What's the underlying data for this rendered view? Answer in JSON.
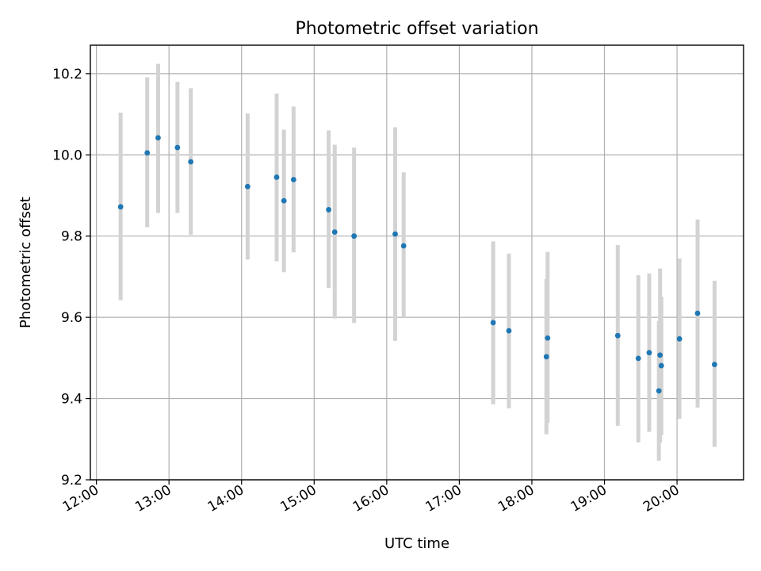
{
  "chart_data": {
    "type": "scatter",
    "title": "Photometric offset variation",
    "xlabel": "UTC time",
    "ylabel": "Photometric offset",
    "xlim": [
      "11:55",
      "20:55"
    ],
    "ylim": [
      9.2,
      10.27
    ],
    "x_ticks": [
      "12:00",
      "13:00",
      "14:00",
      "15:00",
      "16:00",
      "17:00",
      "18:00",
      "19:00",
      "20:00"
    ],
    "y_ticks": [
      "9.2",
      "9.4",
      "9.6",
      "9.8",
      "10.0",
      "10.2"
    ],
    "grid": true,
    "legend": "none",
    "colors": {
      "point": "#1f77b4",
      "errorbar": "#d3d3d3",
      "grid": "#b0b0b0"
    },
    "series": [
      {
        "points": [
          {
            "time": "12:20",
            "y": 9.872,
            "err_low": 9.642,
            "err_high": 10.104
          },
          {
            "time": "12:42",
            "y": 10.005,
            "err_low": 9.822,
            "err_high": 10.191
          },
          {
            "time": "12:51",
            "y": 10.042,
            "err_low": 9.857,
            "err_high": 10.224
          },
          {
            "time": "13:07",
            "y": 10.018,
            "err_low": 9.857,
            "err_high": 10.18
          },
          {
            "time": "13:18",
            "y": 9.983,
            "err_low": 9.803,
            "err_high": 10.164
          },
          {
            "time": "14:05",
            "y": 9.922,
            "err_low": 9.742,
            "err_high": 10.102
          },
          {
            "time": "14:29",
            "y": 9.945,
            "err_low": 9.738,
            "err_high": 10.151
          },
          {
            "time": "14:35",
            "y": 9.887,
            "err_low": 9.711,
            "err_high": 10.062
          },
          {
            "time": "14:43",
            "y": 9.939,
            "err_low": 9.76,
            "err_high": 10.119
          },
          {
            "time": "15:12",
            "y": 9.865,
            "err_low": 9.672,
            "err_high": 10.06
          },
          {
            "time": "15:17",
            "y": 9.81,
            "err_low": 9.597,
            "err_high": 10.025
          },
          {
            "time": "15:33",
            "y": 9.8,
            "err_low": 9.586,
            "err_high": 10.018
          },
          {
            "time": "16:07",
            "y": 9.805,
            "err_low": 9.542,
            "err_high": 10.068
          },
          {
            "time": "16:14",
            "y": 9.776,
            "err_low": 9.6,
            "err_high": 9.957
          },
          {
            "time": "17:28",
            "y": 9.587,
            "err_low": 9.386,
            "err_high": 9.787
          },
          {
            "time": "17:41",
            "y": 9.567,
            "err_low": 9.376,
            "err_high": 9.757
          },
          {
            "time": "18:12",
            "y": 9.503,
            "err_low": 9.312,
            "err_high": 9.694
          },
          {
            "time": "18:13",
            "y": 9.549,
            "err_low": 9.34,
            "err_high": 9.761
          },
          {
            "time": "19:11",
            "y": 9.555,
            "err_low": 9.333,
            "err_high": 9.778
          },
          {
            "time": "19:28",
            "y": 9.499,
            "err_low": 9.292,
            "err_high": 9.704
          },
          {
            "time": "19:37",
            "y": 9.513,
            "err_low": 9.318,
            "err_high": 9.708
          },
          {
            "time": "19:45",
            "y": 9.419,
            "err_low": 9.247,
            "err_high": 9.591
          },
          {
            "time": "19:46",
            "y": 9.507,
            "err_low": 9.292,
            "err_high": 9.72
          },
          {
            "time": "19:47",
            "y": 9.481,
            "err_low": 9.31,
            "err_high": 9.651
          },
          {
            "time": "20:02",
            "y": 9.547,
            "err_low": 9.35,
            "err_high": 9.745
          },
          {
            "time": "20:17",
            "y": 9.61,
            "err_low": 9.378,
            "err_high": 9.841
          },
          {
            "time": "20:31",
            "y": 9.484,
            "err_low": 9.281,
            "err_high": 9.69
          }
        ]
      }
    ]
  }
}
